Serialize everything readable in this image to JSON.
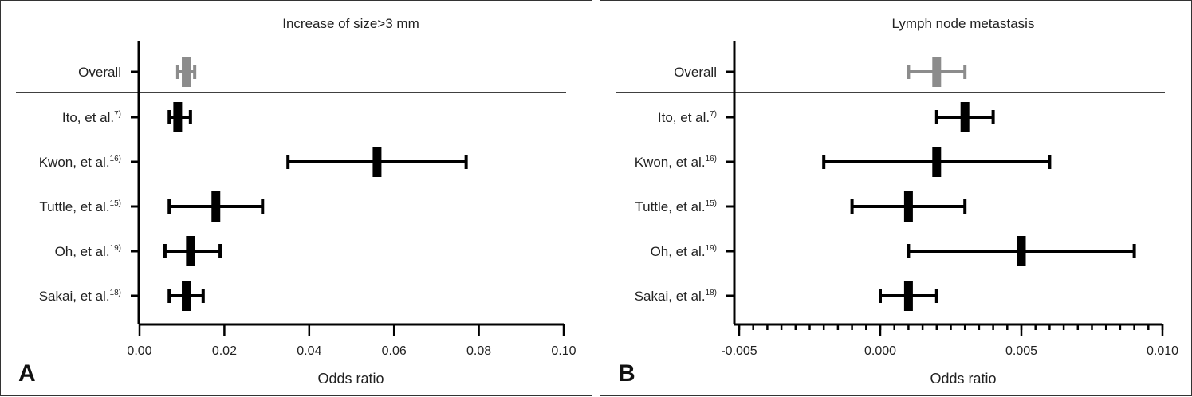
{
  "chart_data": [
    {
      "type": "forest",
      "panel_label": "A",
      "title": "Increase of size>3 mm",
      "xlabel": "Odds ratio",
      "xlim": [
        0,
        0.1
      ],
      "xticks": [
        "0.00",
        "0.02",
        "0.04",
        "0.06",
        "0.08",
        "0.10"
      ],
      "xtick_values": [
        0,
        0.02,
        0.04,
        0.06,
        0.08,
        0.1
      ],
      "minor_ticks": false,
      "rows": [
        {
          "label": "Overall",
          "ref": "",
          "estimate": 0.011,
          "low": 0.009,
          "high": 0.013,
          "color": "#8c8c8c"
        },
        {
          "label": "Ito, et al.",
          "ref": "7)",
          "estimate": 0.009,
          "low": 0.007,
          "high": 0.012,
          "color": "#000000"
        },
        {
          "label": "Kwon, et al.",
          "ref": "16)",
          "estimate": 0.056,
          "low": 0.035,
          "high": 0.077,
          "color": "#000000"
        },
        {
          "label": "Tuttle, et al.",
          "ref": "15)",
          "estimate": 0.018,
          "low": 0.007,
          "high": 0.029,
          "color": "#000000"
        },
        {
          "label": "Oh, et al.",
          "ref": "19)",
          "estimate": 0.012,
          "low": 0.006,
          "high": 0.019,
          "color": "#000000"
        },
        {
          "label": "Sakai, et al.",
          "ref": "18)",
          "estimate": 0.011,
          "low": 0.007,
          "high": 0.015,
          "color": "#000000"
        }
      ]
    },
    {
      "type": "forest",
      "panel_label": "B",
      "title": "Lymph node metastasis",
      "xlabel": "Odds ratio",
      "xlim": [
        -0.005,
        0.01
      ],
      "xticks": [
        "-0.005",
        "0.000",
        "0.005",
        "0.010"
      ],
      "xtick_values": [
        -0.005,
        0,
        0.005,
        0.01
      ],
      "minor_ticks": true,
      "rows": [
        {
          "label": "Overall",
          "ref": "",
          "estimate": 0.002,
          "low": 0.001,
          "high": 0.003,
          "color": "#8c8c8c"
        },
        {
          "label": "Ito, et al.",
          "ref": "7)",
          "estimate": 0.003,
          "low": 0.002,
          "high": 0.004,
          "color": "#000000"
        },
        {
          "label": "Kwon, et al.",
          "ref": "16)",
          "estimate": 0.002,
          "low": -0.002,
          "high": 0.006,
          "color": "#000000"
        },
        {
          "label": "Tuttle, et al.",
          "ref": "15)",
          "estimate": 0.001,
          "low": -0.001,
          "high": 0.003,
          "color": "#000000"
        },
        {
          "label": "Oh, et al.",
          "ref": "19)",
          "estimate": 0.005,
          "low": 0.001,
          "high": 0.009,
          "color": "#000000"
        },
        {
          "label": "Sakai, et al.",
          "ref": "18)",
          "estimate": 0.001,
          "low": 0.0,
          "high": 0.002,
          "color": "#000000"
        }
      ]
    }
  ]
}
